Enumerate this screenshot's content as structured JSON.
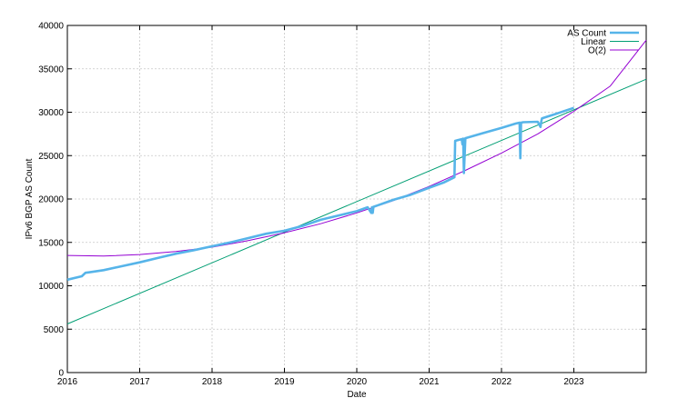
{
  "chart_data": {
    "type": "line",
    "title": "",
    "xlabel": "Date",
    "ylabel": "IPv6 BGP AS Count",
    "xlim": [
      2016,
      2024
    ],
    "ylim": [
      0,
      40000
    ],
    "x_ticks": [
      "2016",
      "2017",
      "2018",
      "2019",
      "2020",
      "2021",
      "2022",
      "2023"
    ],
    "y_ticks": [
      "0",
      "5000",
      "10000",
      "15000",
      "20000",
      "25000",
      "30000",
      "35000",
      "40000"
    ],
    "grid": true,
    "legend_position": "top-right",
    "series": [
      {
        "name": "AS Count",
        "color": "#56b4e9",
        "x": [
          2016.0,
          2016.2,
          2016.25,
          2016.3,
          2016.5,
          2016.75,
          2017.0,
          2017.25,
          2017.5,
          2017.75,
          2018.0,
          2018.25,
          2018.5,
          2018.75,
          2019.0,
          2019.25,
          2019.5,
          2019.75,
          2020.0,
          2020.15,
          2020.2,
          2020.21,
          2020.22,
          2020.23,
          2020.3,
          2020.5,
          2020.75,
          2021.0,
          2021.2,
          2021.35,
          2021.36,
          2021.4,
          2021.45,
          2021.46,
          2021.47,
          2021.48,
          2021.5,
          2021.75,
          2022.0,
          2022.2,
          2022.25,
          2022.26,
          2022.27,
          2022.3,
          2022.5,
          2022.54,
          2022.55,
          2022.56,
          2022.75,
          2023.0
        ],
        "y": [
          10700,
          11100,
          11500,
          11550,
          11800,
          12250,
          12700,
          13200,
          13700,
          14100,
          14550,
          15000,
          15500,
          16000,
          16350,
          16900,
          17600,
          18100,
          18600,
          19050,
          18400,
          19050,
          18400,
          19100,
          19300,
          19900,
          20500,
          21300,
          21900,
          22500,
          26700,
          26800,
          26900,
          26300,
          26950,
          23000,
          27000,
          27600,
          28200,
          28700,
          28800,
          24700,
          28800,
          28850,
          28900,
          28300,
          28950,
          29300,
          29800,
          30500
        ]
      },
      {
        "name": "Linear",
        "color": "#009e73",
        "x": [
          2016.0,
          2024.0
        ],
        "y": [
          5600,
          33800
        ]
      },
      {
        "name": "O(2)",
        "color": "#9400d3",
        "x": [
          2016.0,
          2016.5,
          2017.0,
          2017.5,
          2018.0,
          2018.5,
          2019.0,
          2019.5,
          2020.0,
          2020.5,
          2021.0,
          2021.5,
          2022.0,
          2022.5,
          2023.0,
          2023.5,
          2024.0
        ],
        "y": [
          13500,
          13420,
          13600,
          13950,
          14450,
          15200,
          16100,
          17150,
          18400,
          19800,
          21450,
          23300,
          25300,
          27500,
          30100,
          33000,
          38300
        ]
      }
    ]
  }
}
